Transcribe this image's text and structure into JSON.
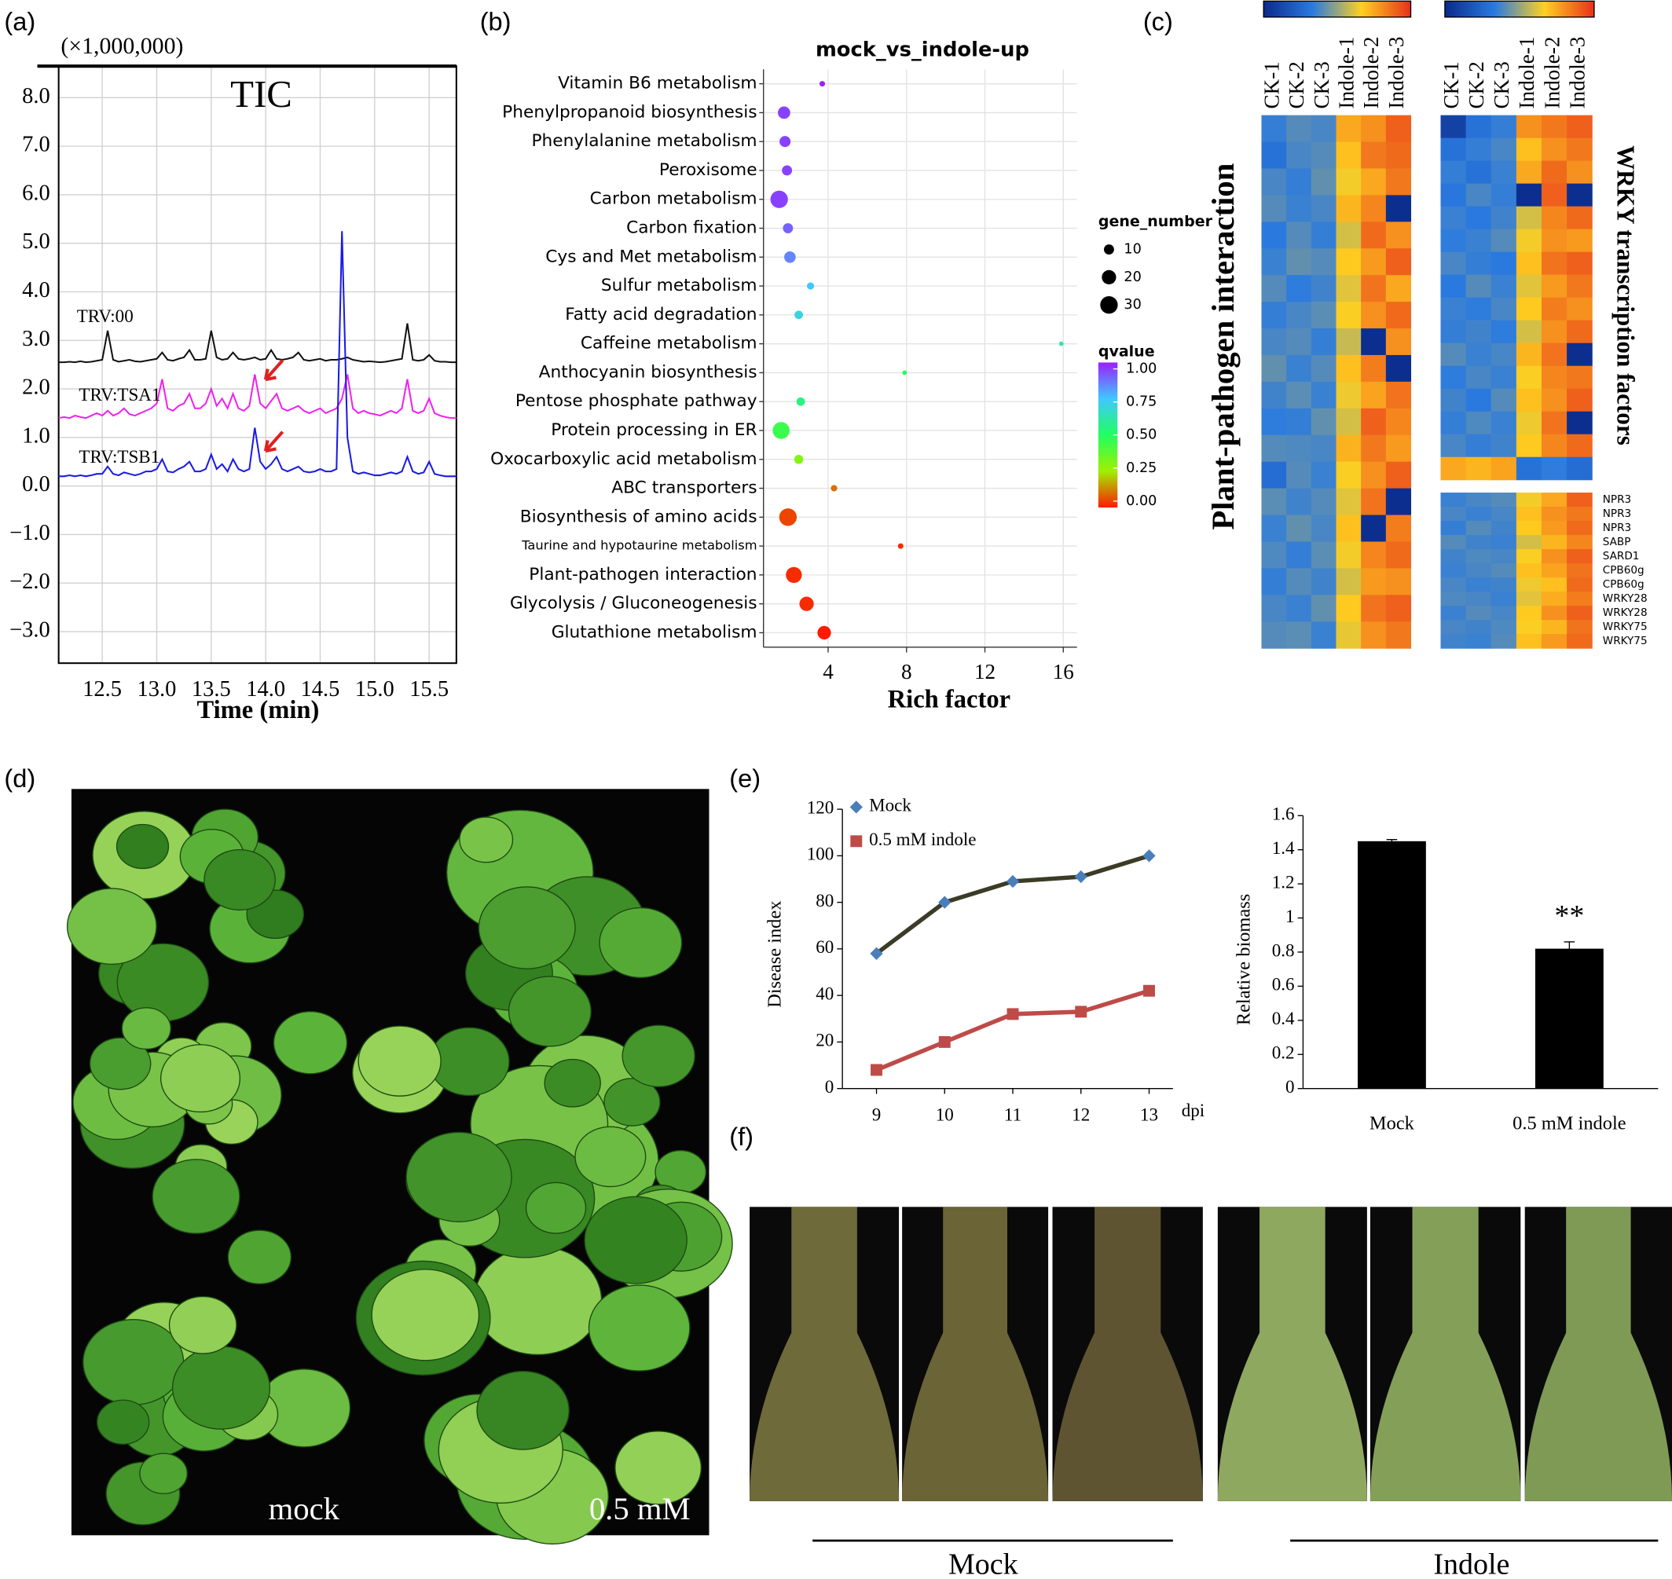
{
  "panel_labels": [
    "(a)",
    "(b)",
    "(c)",
    "(d)",
    "(e)",
    "(f)"
  ],
  "photo_d": {
    "labels": [
      "mock",
      "0.5 mM"
    ]
  },
  "photo_f": {
    "labels": [
      "Mock",
      "Indole"
    ]
  },
  "chart_data": [
    {
      "type": "line",
      "unit_label": "(×1,000,000)",
      "annotation": "TIC",
      "xlabel": "Time (min)",
      "grid": true,
      "xlim": [
        12.1,
        15.75
      ],
      "ylim": [
        -3.65,
        8.65
      ],
      "xticks": [
        12.5,
        {
          "value": 13,
          "label": "13.0"
        },
        13.5,
        {
          "value": 14,
          "label": "14.0"
        },
        14.5,
        {
          "value": 15,
          "label": "15.0"
        },
        15.5
      ],
      "yticks": [
        {
          "value": 8,
          "label": "8.0"
        },
        {
          "value": 7,
          "label": "7.0"
        },
        {
          "value": 6,
          "label": "6.0"
        },
        {
          "value": 5,
          "label": "5.0"
        },
        {
          "value": 4,
          "label": "4.0"
        },
        {
          "value": 3,
          "label": "3.0"
        },
        {
          "value": 2,
          "label": "2.0"
        },
        {
          "value": 1,
          "label": "1.0"
        },
        {
          "value": 0,
          "label": "0.0"
        },
        {
          "value": -1,
          "label": "−1.0"
        },
        {
          "value": -2,
          "label": "−2.0"
        },
        {
          "value": -3,
          "label": "−3.0"
        }
      ],
      "x": [
        12.1,
        12.15,
        12.2,
        12.25,
        12.3,
        12.35,
        12.4,
        12.45,
        12.5,
        12.55,
        12.6,
        12.65,
        12.7,
        12.75,
        12.8,
        12.85,
        12.9,
        12.95,
        13.0,
        13.05,
        13.1,
        13.15,
        13.2,
        13.25,
        13.3,
        13.35,
        13.4,
        13.45,
        13.5,
        13.55,
        13.6,
        13.65,
        13.7,
        13.75,
        13.8,
        13.85,
        13.9,
        13.95,
        14.0,
        14.05,
        14.1,
        14.15,
        14.2,
        14.25,
        14.3,
        14.35,
        14.4,
        14.45,
        14.5,
        14.55,
        14.6,
        14.65,
        14.7,
        14.75,
        14.8,
        14.85,
        14.9,
        14.95,
        15.0,
        15.05,
        15.1,
        15.15,
        15.2,
        15.25,
        15.3,
        15.35,
        15.4,
        15.45,
        15.5,
        15.55,
        15.6,
        15.65,
        15.7,
        15.75
      ],
      "series": [
        {
          "name": "TRV:00",
          "color": "#111111",
          "values": [
            2.55,
            2.55,
            2.56,
            2.55,
            2.57,
            2.55,
            2.56,
            2.58,
            2.6,
            3.2,
            2.6,
            2.56,
            2.58,
            2.6,
            2.57,
            2.56,
            2.58,
            2.6,
            2.62,
            2.75,
            2.6,
            2.58,
            2.62,
            2.65,
            2.8,
            2.6,
            2.6,
            2.62,
            3.2,
            2.65,
            2.6,
            2.62,
            2.75,
            2.62,
            2.6,
            2.62,
            2.65,
            2.6,
            2.62,
            2.8,
            2.62,
            2.6,
            2.62,
            2.65,
            2.75,
            2.6,
            2.58,
            2.6,
            2.62,
            2.58,
            2.6,
            2.6,
            2.62,
            2.65,
            2.6,
            2.58,
            2.56,
            2.57,
            2.56,
            2.55,
            2.56,
            2.58,
            2.6,
            2.62,
            3.35,
            2.6,
            2.58,
            2.6,
            2.7,
            2.58,
            2.56,
            2.56,
            2.55,
            2.55
          ]
        },
        {
          "name": "TRV:TSA1",
          "color": "#ee22ee",
          "values": [
            1.4,
            1.42,
            1.4,
            1.45,
            1.42,
            1.4,
            1.45,
            1.5,
            1.45,
            1.55,
            1.45,
            1.5,
            1.6,
            1.48,
            1.45,
            1.5,
            1.55,
            1.6,
            1.7,
            2.2,
            1.6,
            1.55,
            1.65,
            1.7,
            1.9,
            1.6,
            1.6,
            1.7,
            2.0,
            1.65,
            1.8,
            1.6,
            1.9,
            1.6,
            1.55,
            1.65,
            2.3,
            1.7,
            1.6,
            1.75,
            1.9,
            1.6,
            1.55,
            1.6,
            1.65,
            1.55,
            1.5,
            1.55,
            1.6,
            1.5,
            1.55,
            1.6,
            1.8,
            2.3,
            1.6,
            1.5,
            1.55,
            1.5,
            1.48,
            1.45,
            1.5,
            1.55,
            1.5,
            1.6,
            2.2,
            1.55,
            1.5,
            1.55,
            1.8,
            1.5,
            1.45,
            1.42,
            1.4,
            1.4
          ]
        },
        {
          "name": "TRV:TSB1",
          "color": "#1a1ae6",
          "values": [
            0.2,
            0.2,
            0.22,
            0.2,
            0.22,
            0.2,
            0.22,
            0.25,
            0.25,
            0.4,
            0.25,
            0.22,
            0.28,
            0.25,
            0.22,
            0.25,
            0.3,
            0.3,
            0.35,
            0.55,
            0.3,
            0.28,
            0.35,
            0.4,
            0.5,
            0.3,
            0.3,
            0.35,
            0.65,
            0.35,
            0.45,
            0.3,
            0.55,
            0.35,
            0.3,
            0.35,
            1.2,
            0.5,
            0.35,
            0.45,
            0.6,
            0.35,
            0.3,
            0.35,
            0.4,
            0.3,
            0.28,
            0.3,
            0.35,
            0.3,
            0.3,
            0.35,
            5.25,
            1.0,
            0.3,
            0.25,
            0.28,
            0.25,
            0.22,
            0.22,
            0.25,
            0.28,
            0.25,
            0.3,
            0.6,
            0.3,
            0.25,
            0.28,
            0.5,
            0.25,
            0.22,
            0.2,
            0.2,
            0.2
          ]
        }
      ]
    },
    {
      "type": "bubble",
      "title": "mock_vs_indole-up",
      "xlabel": "Rich factor",
      "grid": true,
      "xlim": [
        0.7,
        16.7
      ],
      "xticks": [
        4,
        8,
        12,
        16
      ],
      "categories": [
        "Vitamin B6 metabolism",
        "Phenylpropanoid biosynthesis",
        "Phenylalanine metabolism",
        "Peroxisome",
        "Carbon metabolism",
        "Carbon fixation",
        "Cys and Met metabolism",
        "Sulfur metabolism",
        "Fatty acid degradation",
        "Caffeine metabolism",
        "Anthocyanin biosynthesis",
        "Pentose phosphate pathway",
        "Protein processing in ER",
        "Oxocarboxylic acid metabolism",
        "ABC transporters",
        "Biosynthesis of amino acids",
        "Taurine and hypotaurine metabolism",
        "Plant-pathogen interaction",
        "Glycolysis / Gluconeogenesis",
        "Glutathione metabolism"
      ],
      "values": [
        3.7,
        1.75,
        1.8,
        1.9,
        1.5,
        1.95,
        2.05,
        3.1,
        2.5,
        15.9,
        7.9,
        2.6,
        1.6,
        2.5,
        4.3,
        1.95,
        7.7,
        2.25,
        2.9,
        3.8
      ],
      "sizes": [
        3,
        15,
        12,
        10,
        30,
        10,
        13,
        5,
        7,
        2,
        2,
        7,
        28,
        8,
        4,
        30,
        3,
        25,
        20,
        18
      ],
      "qvalues": [
        1.0,
        0.95,
        0.95,
        0.95,
        0.95,
        0.9,
        0.85,
        0.75,
        0.7,
        0.6,
        0.5,
        0.55,
        0.45,
        0.3,
        0.1,
        0.05,
        0.02,
        0.02,
        0.02,
        0.0
      ],
      "size_label": "gene_number",
      "size_ticks": [
        10,
        20,
        30
      ],
      "color_label": "qvalue",
      "color_lim": [
        0,
        1
      ],
      "color_ticks": [
        {
          "value": 1,
          "label": "1.00"
        },
        {
          "value": 0.75,
          "label": "0.75"
        },
        {
          "value": 0.5,
          "label": "0.50"
        },
        {
          "value": 0.25,
          "label": "0.25"
        },
        {
          "value": 0,
          "label": "0.00"
        }
      ],
      "colors": [
        "#ff1a00",
        "#a0f000",
        "#20ff60",
        "#40c8ff",
        "#9a20ff"
      ]
    },
    {
      "type": "heatmap",
      "title": "Plant-pathogen interaction",
      "categories": [
        "CK-1",
        "CK-2",
        "CK-3",
        "Indole-1",
        "Indole-2",
        "Indole-3"
      ],
      "colors": [
        "#0a2a8a",
        "#2a7ae0",
        "#ffd020",
        "#e8301a"
      ],
      "values": [
        [
          0.35,
          0.4,
          0.38,
          0.75,
          0.8,
          0.9
        ],
        [
          0.3,
          0.38,
          0.4,
          0.7,
          0.85,
          0.88
        ],
        [
          0.38,
          0.35,
          0.42,
          0.65,
          0.75,
          0.85
        ],
        [
          0.4,
          0.36,
          0.38,
          0.72,
          0.82,
          0.02
        ],
        [
          0.33,
          0.4,
          0.35,
          0.6,
          0.88,
          0.8
        ],
        [
          0.36,
          0.42,
          0.4,
          0.68,
          0.78,
          0.9
        ],
        [
          0.4,
          0.34,
          0.37,
          0.62,
          0.86,
          0.75
        ],
        [
          0.35,
          0.38,
          0.41,
          0.66,
          0.8,
          0.88
        ],
        [
          0.38,
          0.4,
          0.35,
          0.58,
          0.02,
          0.8
        ],
        [
          0.42,
          0.36,
          0.4,
          0.7,
          0.84,
          0.02
        ],
        [
          0.37,
          0.41,
          0.36,
          0.64,
          0.76,
          0.86
        ],
        [
          0.34,
          0.35,
          0.42,
          0.6,
          0.9,
          0.82
        ],
        [
          0.4,
          0.39,
          0.38,
          0.73,
          0.85,
          0.78
        ],
        [
          0.28,
          0.4,
          0.36,
          0.66,
          0.8,
          0.9
        ],
        [
          0.41,
          0.37,
          0.4,
          0.62,
          0.86,
          0.02
        ],
        [
          0.36,
          0.42,
          0.38,
          0.7,
          0.02,
          0.84
        ],
        [
          0.39,
          0.35,
          0.41,
          0.65,
          0.82,
          0.88
        ],
        [
          0.35,
          0.4,
          0.37,
          0.6,
          0.78,
          0.8
        ],
        [
          0.38,
          0.36,
          0.42,
          0.68,
          0.86,
          0.9
        ],
        [
          0.4,
          0.41,
          0.36,
          0.63,
          0.8,
          0.85
        ]
      ]
    },
    {
      "type": "heatmap",
      "title": "WRKY transcription factors",
      "categories": [
        "CK-1",
        "CK-2",
        "CK-3",
        "Indole-1",
        "Indole-2",
        "Indole-3"
      ],
      "colors": [
        "#0a2a8a",
        "#2a7ae0",
        "#ffd020",
        "#e8301a"
      ],
      "values": [
        [
          0.1,
          0.3,
          0.35,
          0.8,
          0.85,
          0.9
        ],
        [
          0.3,
          0.35,
          0.38,
          0.7,
          0.8,
          0.85
        ],
        [
          0.35,
          0.3,
          0.36,
          0.75,
          0.88,
          0.8
        ],
        [
          0.32,
          0.38,
          0.35,
          0.02,
          0.9,
          0.02
        ],
        [
          0.36,
          0.33,
          0.37,
          0.6,
          0.82,
          0.88
        ],
        [
          0.34,
          0.36,
          0.4,
          0.65,
          0.8,
          0.78
        ],
        [
          0.38,
          0.35,
          0.33,
          0.7,
          0.86,
          0.9
        ],
        [
          0.33,
          0.4,
          0.36,
          0.62,
          0.78,
          0.85
        ],
        [
          0.36,
          0.34,
          0.38,
          0.68,
          0.84,
          0.8
        ],
        [
          0.35,
          0.37,
          0.34,
          0.6,
          0.8,
          0.88
        ],
        [
          0.4,
          0.36,
          0.38,
          0.72,
          0.86,
          0.02
        ],
        [
          0.34,
          0.38,
          0.36,
          0.66,
          0.82,
          0.85
        ],
        [
          0.37,
          0.33,
          0.4,
          0.7,
          0.8,
          0.9
        ],
        [
          0.35,
          0.39,
          0.36,
          0.64,
          0.86,
          0.02
        ],
        [
          0.38,
          0.35,
          0.37,
          0.68,
          0.82,
          0.88
        ],
        [
          0.75,
          0.72,
          0.76,
          0.3,
          0.34,
          0.28
        ]
      ]
    },
    {
      "type": "heatmap",
      "row_labels": [
        "NPR3",
        "NPR3",
        "NPR3",
        "SABP",
        "SARD1",
        "CPB60g",
        "CPB60g",
        "WRKY28",
        "WRKY28",
        "WRKY75",
        "WRKY75"
      ],
      "colors": [
        "#0a2a8a",
        "#2a7ae0",
        "#ffd020",
        "#e8301a"
      ],
      "values": [
        [
          0.36,
          0.38,
          0.4,
          0.65,
          0.75,
          0.9
        ],
        [
          0.38,
          0.36,
          0.38,
          0.7,
          0.8,
          0.85
        ],
        [
          0.35,
          0.4,
          0.37,
          0.68,
          0.78,
          0.88
        ],
        [
          0.4,
          0.37,
          0.36,
          0.6,
          0.72,
          0.82
        ],
        [
          0.37,
          0.39,
          0.38,
          0.66,
          0.8,
          0.9
        ],
        [
          0.36,
          0.38,
          0.4,
          0.7,
          0.76,
          0.86
        ],
        [
          0.38,
          0.36,
          0.37,
          0.64,
          0.7,
          0.88
        ],
        [
          0.39,
          0.38,
          0.36,
          0.62,
          0.74,
          0.84
        ],
        [
          0.36,
          0.4,
          0.38,
          0.68,
          0.8,
          0.9
        ],
        [
          0.38,
          0.37,
          0.39,
          0.66,
          0.72,
          0.86
        ],
        [
          0.37,
          0.36,
          0.4,
          0.7,
          0.78,
          0.88
        ]
      ]
    },
    {
      "type": "line",
      "xlabel": "dpi",
      "ylabel": "Disease index",
      "markers": true,
      "xlim": [
        8.5,
        13.35
      ],
      "ylim": [
        0,
        120
      ],
      "xticks": [
        9,
        10,
        11,
        12,
        13
      ],
      "yticks": [
        0,
        20,
        40,
        60,
        80,
        100,
        120
      ],
      "x": [
        9,
        10,
        11,
        12,
        13
      ],
      "series": [
        {
          "name": "Mock",
          "color": "#3b3b26",
          "marker_color": "#4a7ebb",
          "marker": "diamond",
          "values": [
            58,
            80,
            89,
            91,
            100
          ]
        },
        {
          "name": "0.5 mM indole",
          "color": "#be4b48",
          "marker_color": "#be4b48",
          "marker": "square",
          "values": [
            8,
            20,
            32,
            33,
            42
          ]
        }
      ]
    },
    {
      "type": "bar",
      "ylabel": "Relative biomass",
      "annotation": "**",
      "color": "#000000",
      "categories": [
        "Mock",
        "0.5 mM indole"
      ],
      "values": [
        1.45,
        0.82
      ],
      "errors": [
        0.01,
        0.04
      ],
      "ylim": [
        0,
        1.6
      ],
      "yticks": [
        0,
        0.2,
        0.4,
        0.6,
        0.8,
        1,
        1.2,
        1.4,
        1.6
      ]
    }
  ]
}
